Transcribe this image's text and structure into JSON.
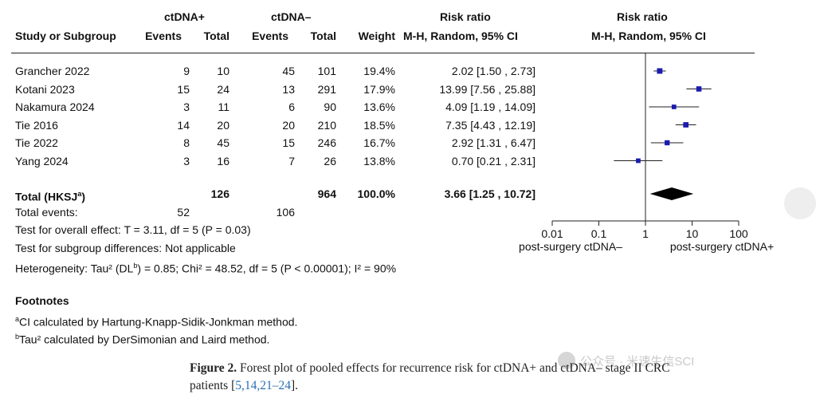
{
  "header": {
    "group1": "ctDNA+",
    "group2": "ctDNA–",
    "rr_top": "Risk ratio",
    "rr_top_plot": "Risk ratio",
    "study": "Study or Subgroup",
    "events1": "Events",
    "total1": "Total",
    "events2": "Events",
    "total2": "Total",
    "weight": "Weight",
    "rr_method": "M-H, Random, 95% CI",
    "rr_method_plot": "M-H, Random, 95% CI"
  },
  "studies": [
    {
      "name": "Grancher 2022",
      "e1": "9",
      "n1": "10",
      "e2": "45",
      "n2": "101",
      "weight": "19.4%",
      "ci_text": "2.02 [1.50 , 2.73]"
    },
    {
      "name": "Kotani 2023",
      "e1": "15",
      "n1": "24",
      "e2": "13",
      "n2": "291",
      "weight": "17.9%",
      "ci_text": "13.99 [7.56 , 25.88]"
    },
    {
      "name": "Nakamura 2024",
      "e1": "3",
      "n1": "11",
      "e2": "6",
      "n2": "90",
      "weight": "13.6%",
      "ci_text": "4.09 [1.19 , 14.09]"
    },
    {
      "name": "Tie 2016",
      "e1": "14",
      "n1": "20",
      "e2": "20",
      "n2": "210",
      "weight": "18.5%",
      "ci_text": "7.35 [4.43 , 12.19]"
    },
    {
      "name": "Tie 2022",
      "e1": "8",
      "n1": "45",
      "e2": "15",
      "n2": "246",
      "weight": "16.7%",
      "ci_text": "2.92 [1.31 , 6.47]"
    },
    {
      "name": "Yang 2024",
      "e1": "3",
      "n1": "16",
      "e2": "7",
      "n2": "26",
      "weight": "13.8%",
      "ci_text": "0.70 [0.21 , 2.31]"
    }
  ],
  "total": {
    "label_pre": "Total (HKSJ",
    "label_sup": "a",
    "label_post": ")",
    "n1": "126",
    "n2": "964",
    "weight": "100.0%",
    "ci_text": "3.66 [1.25 , 10.72]"
  },
  "total_events": {
    "label": "Total events:",
    "e1": "52",
    "e2": "106"
  },
  "tests": {
    "overall": "Test for overall effect: T = 3.11, df = 5 (P = 0.03)",
    "subgroup": "Test for subgroup differences: Not applicable",
    "het_1": "Heterogeneity: Tau² (DL",
    "het_sup": "b",
    "het_2": ") = 0.85; Chi² = 48.52, df = 5 (P < 0.00001); I² = 90%"
  },
  "footnotes": {
    "title": "Footnotes",
    "a_sup": "a",
    "a_text": "CI calculated by Hartung-Knapp-Sidik-Jonkman method.",
    "b_sup": "b",
    "b_text": "Tau² calculated by DerSimonian and Laird method."
  },
  "caption": {
    "label": "Figure 2.",
    "text_1": " Forest plot of pooled effects for recurrence risk for ctDNA+ and ctDNA– stage II CRC",
    "text_2": "patients [",
    "refs": "5,14,21–24",
    "text_3": "]."
  },
  "watermark": {
    "text": "公众号 · 米速生信SCI"
  },
  "colors": {
    "marker": "#1b1bb0",
    "diamond": "#000000",
    "text": "#111111"
  },
  "chart_data": {
    "type": "forest",
    "x_scale": "log",
    "xlim": [
      0.01,
      100
    ],
    "x_ticks": [
      0.01,
      0.1,
      1,
      10,
      100
    ],
    "x_tick_labels": [
      "0.01",
      "0.1",
      "1",
      "10",
      "100"
    ],
    "null_line": 1,
    "left_label": "post-surgery ctDNA–",
    "right_label": "post-surgery ctDNA+",
    "studies": [
      {
        "name": "Grancher 2022",
        "rr": 2.02,
        "lo": 1.5,
        "hi": 2.73,
        "weight": 19.4
      },
      {
        "name": "Kotani 2023",
        "rr": 13.99,
        "lo": 7.56,
        "hi": 25.88,
        "weight": 17.9
      },
      {
        "name": "Nakamura 2024",
        "rr": 4.09,
        "lo": 1.19,
        "hi": 14.09,
        "weight": 13.6
      },
      {
        "name": "Tie 2016",
        "rr": 7.35,
        "lo": 4.43,
        "hi": 12.19,
        "weight": 18.5
      },
      {
        "name": "Tie 2022",
        "rr": 2.92,
        "lo": 1.31,
        "hi": 6.47,
        "weight": 16.7
      },
      {
        "name": "Yang 2024",
        "rr": 0.7,
        "lo": 0.21,
        "hi": 2.31,
        "weight": 13.8
      }
    ],
    "pooled": {
      "rr": 3.66,
      "lo": 1.25,
      "hi": 10.72
    }
  }
}
